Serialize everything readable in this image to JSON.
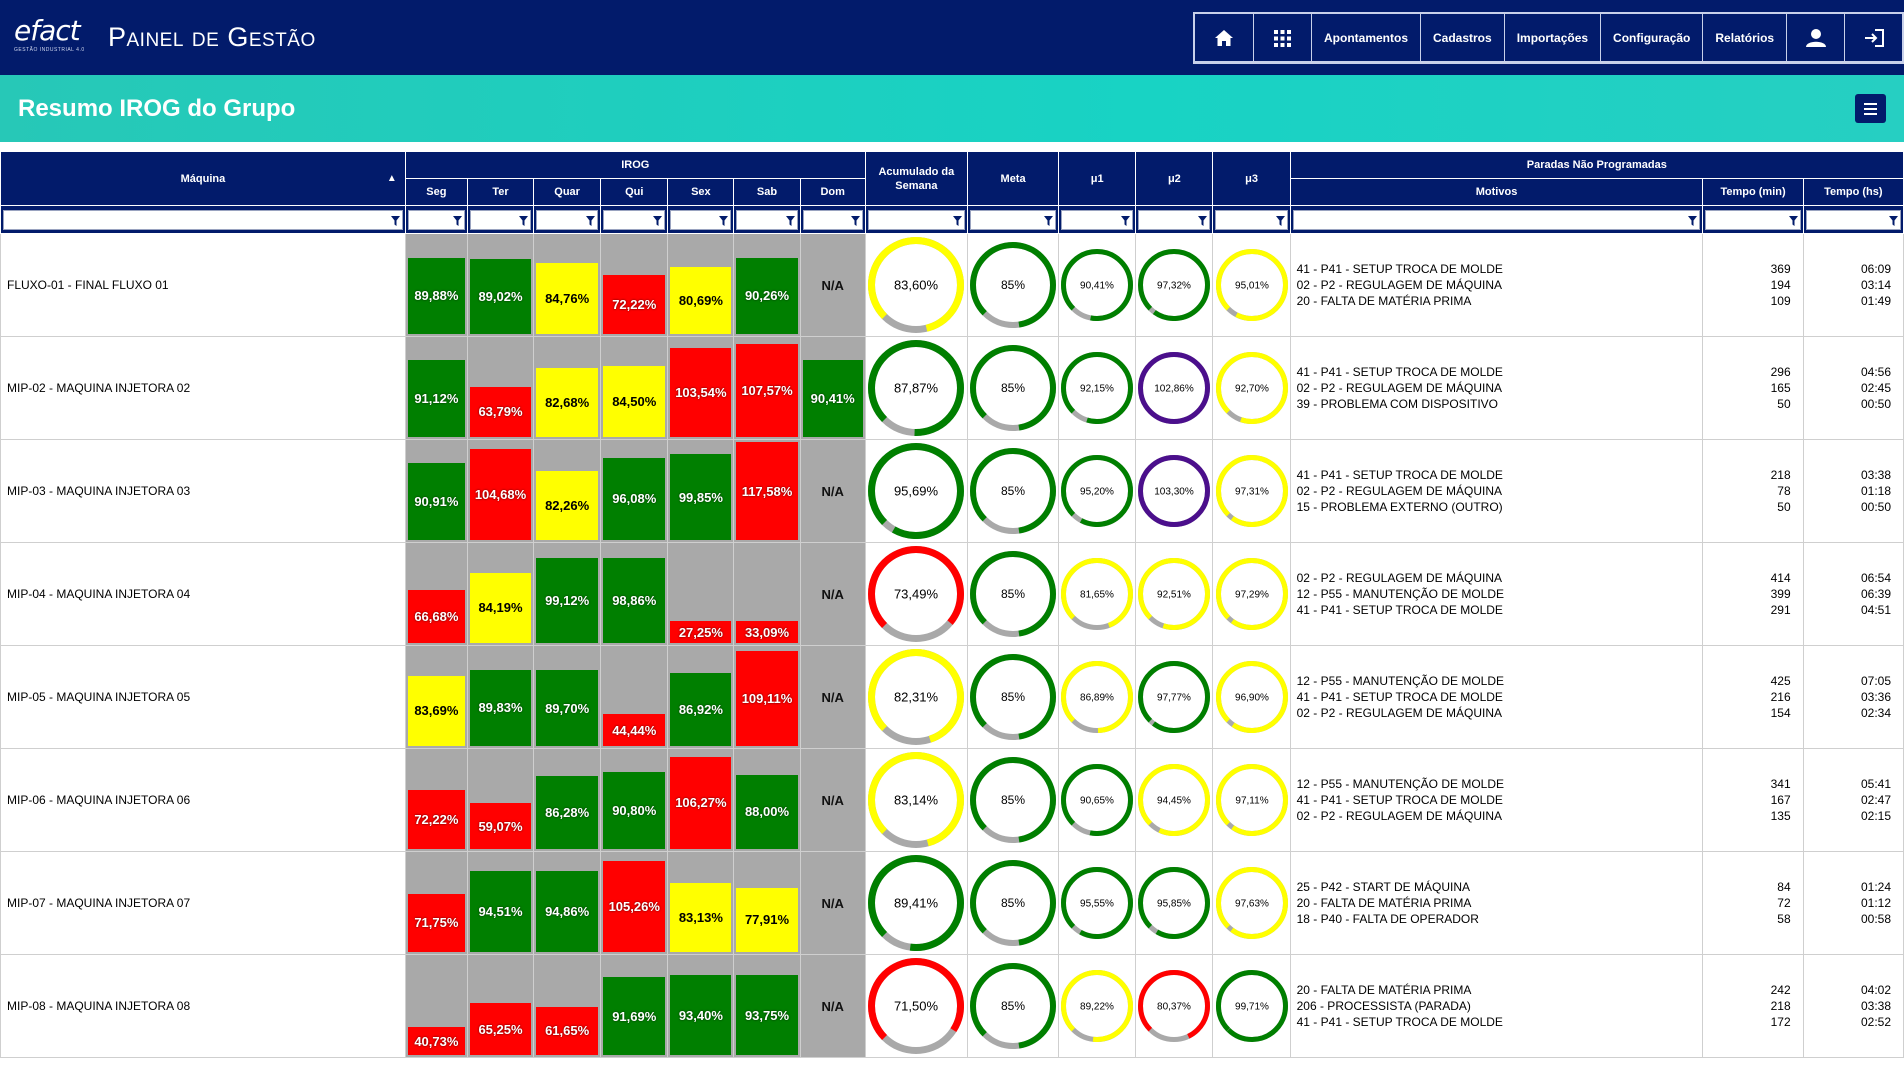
{
  "header": {
    "logo_text": "efact",
    "logo_tagline": "GESTÃO INDUSTRIAL 4.0",
    "app_title": "Painel de Gestão",
    "nav": [
      {
        "icon": "home-icon",
        "label": ""
      },
      {
        "icon": "grid-icon",
        "label": ""
      },
      {
        "icon": "",
        "label": "Apontamentos"
      },
      {
        "icon": "",
        "label": "Cadastros"
      },
      {
        "icon": "",
        "label": "Importações"
      },
      {
        "icon": "",
        "label": "Configuração"
      },
      {
        "icon": "",
        "label": "Relatórios"
      },
      {
        "icon": "user-icon",
        "label": ""
      },
      {
        "icon": "logout-icon",
        "label": ""
      }
    ]
  },
  "page": {
    "title": "Resumo IROG do Grupo"
  },
  "columns": {
    "machine": "Máquina",
    "irog": "IROG",
    "days": [
      "Seg",
      "Ter",
      "Quar",
      "Qui",
      "Sex",
      "Sab",
      "Dom"
    ],
    "acumulado": "Acumulado da Semana",
    "meta": "Meta",
    "mu1": "μ1",
    "mu2": "μ2",
    "mu3": "μ3",
    "paradas": "Paradas Não Programadas",
    "motivos": "Motivos",
    "tempo_min": "Tempo (min)",
    "tempo_hs": "Tempo (hs)"
  },
  "colors": {
    "green": "#007f00",
    "yellow": "#ffff00",
    "red": "#ff0000",
    "purple": "#4b0f8c",
    "gray": "#a9a9a9",
    "navy": "#021b6b"
  },
  "rows": [
    {
      "machine": "FLUXO-01 - FINAL FLUXO 01",
      "days": [
        {
          "label": "89,88%",
          "value": 89.88,
          "color": "green"
        },
        {
          "label": "89,02%",
          "value": 89.02,
          "color": "green"
        },
        {
          "label": "84,76%",
          "value": 84.76,
          "color": "yellow"
        },
        {
          "label": "72,22%",
          "value": 72.22,
          "color": "red"
        },
        {
          "label": "80,69%",
          "value": 80.69,
          "color": "yellow"
        },
        {
          "label": "90,26%",
          "value": 90.26,
          "color": "green"
        },
        {
          "label": "N/A",
          "value": null,
          "color": "gray"
        }
      ],
      "acumulado": {
        "label": "83,60%",
        "value": 83.6,
        "color": "yellow"
      },
      "meta": {
        "label": "85%",
        "value": 85,
        "color": "green"
      },
      "mu1": {
        "label": "90,41%",
        "value": 90.41,
        "color": "green"
      },
      "mu2": {
        "label": "97,32%",
        "value": 97.32,
        "color": "green"
      },
      "mu3": {
        "label": "95,01%",
        "value": 95.01,
        "color": "yellow"
      },
      "motivos": [
        "41 - P41 - SETUP TROCA DE MOLDE",
        "02 - P2 - REGULAGEM DE MÁQUINA",
        "20 - FALTA DE MATÉRIA PRIMA"
      ],
      "minutes": [
        "369",
        "194",
        "109"
      ],
      "hours": [
        "06:09",
        "03:14",
        "01:49"
      ]
    },
    {
      "machine": "MIP-02 - MAQUINA INJETORA 02",
      "days": [
        {
          "label": "91,12%",
          "value": 91.12,
          "color": "green"
        },
        {
          "label": "63,79%",
          "value": 63.79,
          "color": "red"
        },
        {
          "label": "82,68%",
          "value": 82.68,
          "color": "yellow"
        },
        {
          "label": "84,50%",
          "value": 84.5,
          "color": "yellow"
        },
        {
          "label": "103,54%",
          "value": 103.54,
          "color": "red"
        },
        {
          "label": "107,57%",
          "value": 107.57,
          "color": "red"
        },
        {
          "label": "90,41%",
          "value": 90.41,
          "color": "green"
        }
      ],
      "acumulado": {
        "label": "87,87%",
        "value": 87.87,
        "color": "green"
      },
      "meta": {
        "label": "85%",
        "value": 85,
        "color": "green"
      },
      "mu1": {
        "label": "92,15%",
        "value": 92.15,
        "color": "green"
      },
      "mu2": {
        "label": "102,86%",
        "value": 102.86,
        "color": "purple"
      },
      "mu3": {
        "label": "92,70%",
        "value": 92.7,
        "color": "yellow"
      },
      "motivos": [
        "41 - P41 - SETUP TROCA DE MOLDE",
        "02 - P2 - REGULAGEM DE MÁQUINA",
        "39 - PROBLEMA COM DISPOSITIVO"
      ],
      "minutes": [
        "296",
        "165",
        "50"
      ],
      "hours": [
        "04:56",
        "02:45",
        "00:50"
      ]
    },
    {
      "machine": "MIP-03 - MAQUINA INJETORA 03",
      "days": [
        {
          "label": "90,91%",
          "value": 90.91,
          "color": "green"
        },
        {
          "label": "104,68%",
          "value": 104.68,
          "color": "red"
        },
        {
          "label": "82,26%",
          "value": 82.26,
          "color": "yellow"
        },
        {
          "label": "96,08%",
          "value": 96.08,
          "color": "green"
        },
        {
          "label": "99,85%",
          "value": 99.85,
          "color": "green"
        },
        {
          "label": "117,58%",
          "value": 117.58,
          "color": "red"
        },
        {
          "label": "N/A",
          "value": null,
          "color": "gray"
        }
      ],
      "acumulado": {
        "label": "95,69%",
        "value": 95.69,
        "color": "green"
      },
      "meta": {
        "label": "85%",
        "value": 85,
        "color": "green"
      },
      "mu1": {
        "label": "95,20%",
        "value": 95.2,
        "color": "green"
      },
      "mu2": {
        "label": "103,30%",
        "value": 103.3,
        "color": "purple"
      },
      "mu3": {
        "label": "97,31%",
        "value": 97.31,
        "color": "yellow"
      },
      "motivos": [
        "41 - P41 - SETUP TROCA DE MOLDE",
        "02 - P2 - REGULAGEM DE MÁQUINA",
        "15 - PROBLEMA EXTERNO (OUTRO)"
      ],
      "minutes": [
        "218",
        "78",
        "50"
      ],
      "hours": [
        "03:38",
        "01:18",
        "00:50"
      ]
    },
    {
      "machine": "MIP-04 - MAQUINA INJETORA 04",
      "days": [
        {
          "label": "66,68%",
          "value": 66.68,
          "color": "red"
        },
        {
          "label": "84,19%",
          "value": 84.19,
          "color": "yellow"
        },
        {
          "label": "99,12%",
          "value": 99.12,
          "color": "green"
        },
        {
          "label": "98,86%",
          "value": 98.86,
          "color": "green"
        },
        {
          "label": "27,25%",
          "value": 27.25,
          "color": "red"
        },
        {
          "label": "33,09%",
          "value": 33.09,
          "color": "red"
        },
        {
          "label": "N/A",
          "value": null,
          "color": "gray"
        }
      ],
      "acumulado": {
        "label": "73,49%",
        "value": 73.49,
        "color": "red"
      },
      "meta": {
        "label": "85%",
        "value": 85,
        "color": "green"
      },
      "mu1": {
        "label": "81,65%",
        "value": 81.65,
        "color": "yellow"
      },
      "mu2": {
        "label": "92,51%",
        "value": 92.51,
        "color": "yellow"
      },
      "mu3": {
        "label": "97,29%",
        "value": 97.29,
        "color": "yellow"
      },
      "motivos": [
        "02 - P2 - REGULAGEM DE MÁQUINA",
        "12 - P55 - MANUTENÇÃO DE MOLDE",
        "41 - P41 - SETUP TROCA DE MOLDE"
      ],
      "minutes": [
        "414",
        "399",
        "291"
      ],
      "hours": [
        "06:54",
        "06:39",
        "04:51"
      ]
    },
    {
      "machine": "MIP-05 - MAQUINA INJETORA 05",
      "days": [
        {
          "label": "83,69%",
          "value": 83.69,
          "color": "yellow"
        },
        {
          "label": "89,83%",
          "value": 89.83,
          "color": "green"
        },
        {
          "label": "89,70%",
          "value": 89.7,
          "color": "green"
        },
        {
          "label": "44,44%",
          "value": 44.44,
          "color": "red"
        },
        {
          "label": "86,92%",
          "value": 86.92,
          "color": "green"
        },
        {
          "label": "109,11%",
          "value": 109.11,
          "color": "red"
        },
        {
          "label": "N/A",
          "value": null,
          "color": "gray"
        }
      ],
      "acumulado": {
        "label": "82,31%",
        "value": 82.31,
        "color": "yellow"
      },
      "meta": {
        "label": "85%",
        "value": 85,
        "color": "green"
      },
      "mu1": {
        "label": "86,89%",
        "value": 86.89,
        "color": "yellow"
      },
      "mu2": {
        "label": "97,77%",
        "value": 97.77,
        "color": "green"
      },
      "mu3": {
        "label": "96,90%",
        "value": 96.9,
        "color": "yellow"
      },
      "motivos": [
        "12 - P55 - MANUTENÇÃO DE MOLDE",
        "41 - P41 - SETUP TROCA DE MOLDE",
        "02 - P2 - REGULAGEM DE MÁQUINA"
      ],
      "minutes": [
        "425",
        "216",
        "154"
      ],
      "hours": [
        "07:05",
        "03:36",
        "02:34"
      ]
    },
    {
      "machine": "MIP-06 - MAQUINA INJETORA 06",
      "days": [
        {
          "label": "72,22%",
          "value": 72.22,
          "color": "red"
        },
        {
          "label": "59,07%",
          "value": 59.07,
          "color": "red"
        },
        {
          "label": "86,28%",
          "value": 86.28,
          "color": "green"
        },
        {
          "label": "90,80%",
          "value": 90.8,
          "color": "green"
        },
        {
          "label": "106,27%",
          "value": 106.27,
          "color": "red"
        },
        {
          "label": "88,00%",
          "value": 88.0,
          "color": "green"
        },
        {
          "label": "N/A",
          "value": null,
          "color": "gray"
        }
      ],
      "acumulado": {
        "label": "83,14%",
        "value": 83.14,
        "color": "yellow"
      },
      "meta": {
        "label": "85%",
        "value": 85,
        "color": "green"
      },
      "mu1": {
        "label": "90,65%",
        "value": 90.65,
        "color": "green"
      },
      "mu2": {
        "label": "94,45%",
        "value": 94.45,
        "color": "yellow"
      },
      "mu3": {
        "label": "97,11%",
        "value": 97.11,
        "color": "yellow"
      },
      "motivos": [
        "12 - P55 - MANUTENÇÃO DE MOLDE",
        "41 - P41 - SETUP TROCA DE MOLDE",
        "02 - P2 - REGULAGEM DE MÁQUINA"
      ],
      "minutes": [
        "341",
        "167",
        "135"
      ],
      "hours": [
        "05:41",
        "02:47",
        "02:15"
      ]
    },
    {
      "machine": "MIP-07 - MAQUINA INJETORA 07",
      "days": [
        {
          "label": "71,75%",
          "value": 71.75,
          "color": "red"
        },
        {
          "label": "94,51%",
          "value": 94.51,
          "color": "green"
        },
        {
          "label": "94,86%",
          "value": 94.86,
          "color": "green"
        },
        {
          "label": "105,26%",
          "value": 105.26,
          "color": "red"
        },
        {
          "label": "83,13%",
          "value": 83.13,
          "color": "yellow"
        },
        {
          "label": "77,91%",
          "value": 77.91,
          "color": "yellow"
        },
        {
          "label": "N/A",
          "value": null,
          "color": "gray"
        }
      ],
      "acumulado": {
        "label": "89,41%",
        "value": 89.41,
        "color": "green"
      },
      "meta": {
        "label": "85%",
        "value": 85,
        "color": "green"
      },
      "mu1": {
        "label": "95,55%",
        "value": 95.55,
        "color": "green"
      },
      "mu2": {
        "label": "95,85%",
        "value": 95.85,
        "color": "green"
      },
      "mu3": {
        "label": "97,63%",
        "value": 97.63,
        "color": "yellow"
      },
      "motivos": [
        "25 - P42 - START DE MÁQUINA",
        "20 - FALTA DE MATÉRIA PRIMA",
        "18 - P40 - FALTA DE OPERADOR"
      ],
      "minutes": [
        "84",
        "72",
        "58"
      ],
      "hours": [
        "01:24",
        "01:12",
        "00:58"
      ]
    },
    {
      "machine": "MIP-08 - MAQUINA INJETORA 08",
      "days": [
        {
          "label": "40,73%",
          "value": 40.73,
          "color": "red"
        },
        {
          "label": "65,25%",
          "value": 65.25,
          "color": "red"
        },
        {
          "label": "61,65%",
          "value": 61.65,
          "color": "red"
        },
        {
          "label": "91,69%",
          "value": 91.69,
          "color": "green"
        },
        {
          "label": "93,40%",
          "value": 93.4,
          "color": "green"
        },
        {
          "label": "93,75%",
          "value": 93.75,
          "color": "green"
        },
        {
          "label": "N/A",
          "value": null,
          "color": "gray"
        }
      ],
      "acumulado": {
        "label": "71,50%",
        "value": 71.5,
        "color": "red"
      },
      "meta": {
        "label": "85%",
        "value": 85,
        "color": "green"
      },
      "mu1": {
        "label": "89,22%",
        "value": 89.22,
        "color": "yellow"
      },
      "mu2": {
        "label": "80,37%",
        "value": 80.37,
        "color": "red"
      },
      "mu3": {
        "label": "99,71%",
        "value": 99.71,
        "color": "green"
      },
      "motivos": [
        "20 - FALTA DE MATÉRIA PRIMA",
        "206 - PROCESSISTA (PARADA)",
        "41 - P41 - SETUP TROCA DE MOLDE"
      ],
      "minutes": [
        "242",
        "218",
        "172"
      ],
      "hours": [
        "04:02",
        "03:38",
        "02:52"
      ]
    }
  ]
}
